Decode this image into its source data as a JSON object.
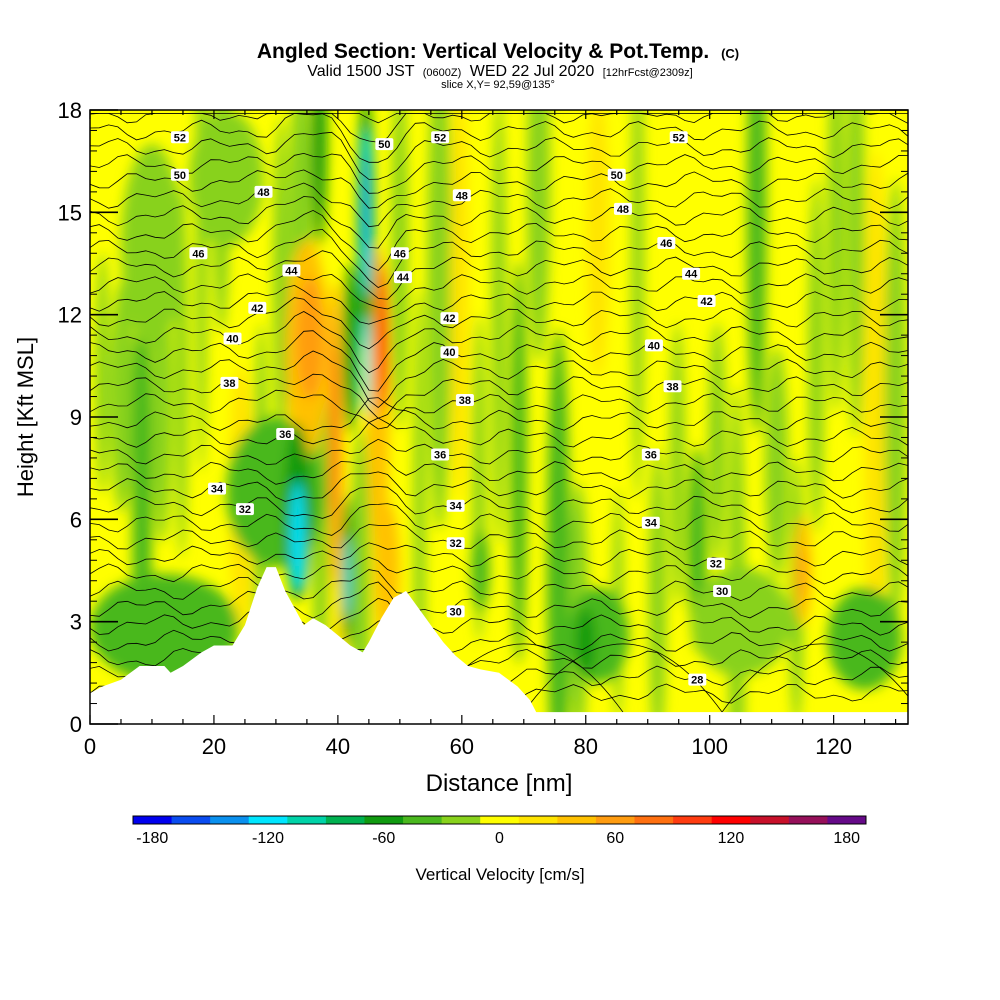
{
  "chart_data": {
    "type": "heatmap",
    "title": "Angled Section: Vertical Velocity & Pot.Temp.",
    "title_units": "(C)",
    "subtitle": {
      "valid": "Valid 1500 JST",
      "utc": "(0600Z)",
      "date": "WED 22 Jul 2020",
      "forecast": "[12hrFcst@2309z]"
    },
    "slice": "slice X,Y= 92,59@135°",
    "xlabel": "Distance [nm]",
    "ylabel": "Height [Kft MSL]",
    "xlim": [
      0,
      132
    ],
    "ylim": [
      0,
      18
    ],
    "x_ticks": [
      "0",
      "20",
      "40",
      "60",
      "80",
      "100",
      "120"
    ],
    "y_ticks": [
      "0",
      "3",
      "6",
      "9",
      "12",
      "15",
      "18"
    ],
    "colorbar": {
      "label": "Vertical Velocity [cm/s]",
      "ticks": [
        "-180",
        "-120",
        "-60",
        "0",
        "60",
        "120",
        "180"
      ],
      "colors": [
        "#0000ee",
        "#0a4cf0",
        "#0a90ee",
        "#00e6ff",
        "#00d3a8",
        "#00b150",
        "#109a10",
        "#4ab81e",
        "#88d21c",
        "#ffff00",
        "#ffe400",
        "#ffc100",
        "#ff9c10",
        "#ff7010",
        "#ff3c10",
        "#ff0000",
        "#c8102a",
        "#96105a",
        "#660a88"
      ]
    },
    "theta_labels": [
      {
        "text": "52",
        "x": 14.5,
        "y": 17.2
      },
      {
        "text": "52",
        "x": 56.5,
        "y": 17.2
      },
      {
        "text": "52",
        "x": 95,
        "y": 17.2
      },
      {
        "text": "50",
        "x": 14.5,
        "y": 16.1
      },
      {
        "text": "50",
        "x": 47.5,
        "y": 17.0
      },
      {
        "text": "50",
        "x": 85,
        "y": 16.1
      },
      {
        "text": "48",
        "x": 28,
        "y": 15.6
      },
      {
        "text": "48",
        "x": 60,
        "y": 15.5
      },
      {
        "text": "48",
        "x": 86,
        "y": 15.1
      },
      {
        "text": "46",
        "x": 17.5,
        "y": 13.8
      },
      {
        "text": "46",
        "x": 50,
        "y": 13.8
      },
      {
        "text": "46",
        "x": 93,
        "y": 14.1
      },
      {
        "text": "44",
        "x": 32.5,
        "y": 13.3
      },
      {
        "text": "44",
        "x": 50.5,
        "y": 13.1
      },
      {
        "text": "44",
        "x": 97,
        "y": 13.2
      },
      {
        "text": "42",
        "x": 27,
        "y": 12.2
      },
      {
        "text": "42",
        "x": 58,
        "y": 11.9
      },
      {
        "text": "42",
        "x": 99.5,
        "y": 12.4
      },
      {
        "text": "40",
        "x": 23,
        "y": 11.3
      },
      {
        "text": "40",
        "x": 58,
        "y": 10.9
      },
      {
        "text": "40",
        "x": 91,
        "y": 11.1
      },
      {
        "text": "38",
        "x": 22.5,
        "y": 10.0
      },
      {
        "text": "38",
        "x": 60.5,
        "y": 9.5
      },
      {
        "text": "38",
        "x": 94,
        "y": 9.9
      },
      {
        "text": "36",
        "x": 31.5,
        "y": 8.5
      },
      {
        "text": "36",
        "x": 56.5,
        "y": 7.9
      },
      {
        "text": "36",
        "x": 90.5,
        "y": 7.9
      },
      {
        "text": "34",
        "x": 20.5,
        "y": 6.9
      },
      {
        "text": "34",
        "x": 59,
        "y": 6.4
      },
      {
        "text": "34",
        "x": 90.5,
        "y": 5.9
      },
      {
        "text": "32",
        "x": 25,
        "y": 6.3
      },
      {
        "text": "32",
        "x": 59,
        "y": 5.3
      },
      {
        "text": "32",
        "x": 101,
        "y": 4.7
      },
      {
        "text": "30",
        "x": 59,
        "y": 3.3
      },
      {
        "text": "30",
        "x": 102,
        "y": 3.9
      },
      {
        "text": "28",
        "x": 98,
        "y": 1.3
      }
    ],
    "terrain": [
      [
        0,
        0.9
      ],
      [
        2,
        1.1
      ],
      [
        5,
        1.3
      ],
      [
        8,
        1.7
      ],
      [
        12,
        1.7
      ],
      [
        13,
        1.5
      ],
      [
        15,
        1.7
      ],
      [
        18,
        2.1
      ],
      [
        20,
        2.3
      ],
      [
        23,
        2.3
      ],
      [
        25,
        2.9
      ],
      [
        27,
        4.0
      ],
      [
        28.5,
        4.6
      ],
      [
        30,
        4.6
      ],
      [
        31.5,
        3.9
      ],
      [
        33,
        3.4
      ],
      [
        34.5,
        2.9
      ],
      [
        36,
        3.1
      ],
      [
        38,
        2.9
      ],
      [
        40,
        2.6
      ],
      [
        42,
        2.3
      ],
      [
        44,
        2.1
      ],
      [
        45,
        2.4
      ],
      [
        47,
        3.1
      ],
      [
        49,
        3.7
      ],
      [
        51,
        3.9
      ],
      [
        53,
        3.4
      ],
      [
        55,
        2.9
      ],
      [
        57,
        2.4
      ],
      [
        59,
        2.0
      ],
      [
        61,
        1.7
      ],
      [
        63,
        1.6
      ],
      [
        66,
        1.5
      ],
      [
        69,
        1.1
      ],
      [
        71,
        0.7
      ],
      [
        72,
        0.35
      ],
      [
        132,
        0.35
      ]
    ]
  }
}
